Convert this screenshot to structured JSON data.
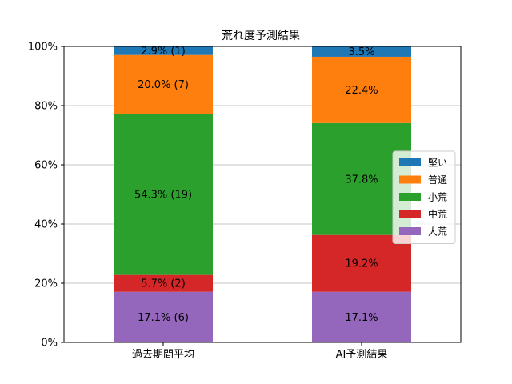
{
  "chart_data": {
    "type": "bar",
    "stacked": true,
    "normalized": true,
    "title": "荒れ度予測結果",
    "xlabel": "",
    "ylabel": "",
    "ylim": [
      0,
      100
    ],
    "yticks": [
      0,
      20,
      40,
      60,
      80,
      100
    ],
    "ytick_labels": [
      "0%",
      "20%",
      "40%",
      "60%",
      "80%",
      "100%"
    ],
    "grid": "horizontal",
    "legend_position": "right",
    "categories": [
      "過去期間平均",
      "AI予測結果"
    ],
    "series": [
      {
        "name": "大荒",
        "color": "#9467bd",
        "values": [
          17.1,
          17.1
        ],
        "labels": [
          "17.1% (6)",
          "17.1%"
        ]
      },
      {
        "name": "中荒",
        "color": "#d62728",
        "values": [
          5.7,
          19.2
        ],
        "labels": [
          "5.7% (2)",
          "19.2%"
        ]
      },
      {
        "name": "小荒",
        "color": "#2ca02c",
        "values": [
          54.3,
          37.8
        ],
        "labels": [
          "54.3% (19)",
          "37.8%"
        ]
      },
      {
        "name": "普通",
        "color": "#ff7f0e",
        "values": [
          20.0,
          22.4
        ],
        "labels": [
          "20.0% (7)",
          "22.4%"
        ]
      },
      {
        "name": "堅い",
        "color": "#1f77b4",
        "values": [
          2.9,
          3.5
        ],
        "labels": [
          "2.9% (1)",
          "3.5%"
        ]
      }
    ],
    "legend_order": [
      "堅い",
      "普通",
      "小荒",
      "中荒",
      "大荒"
    ]
  }
}
